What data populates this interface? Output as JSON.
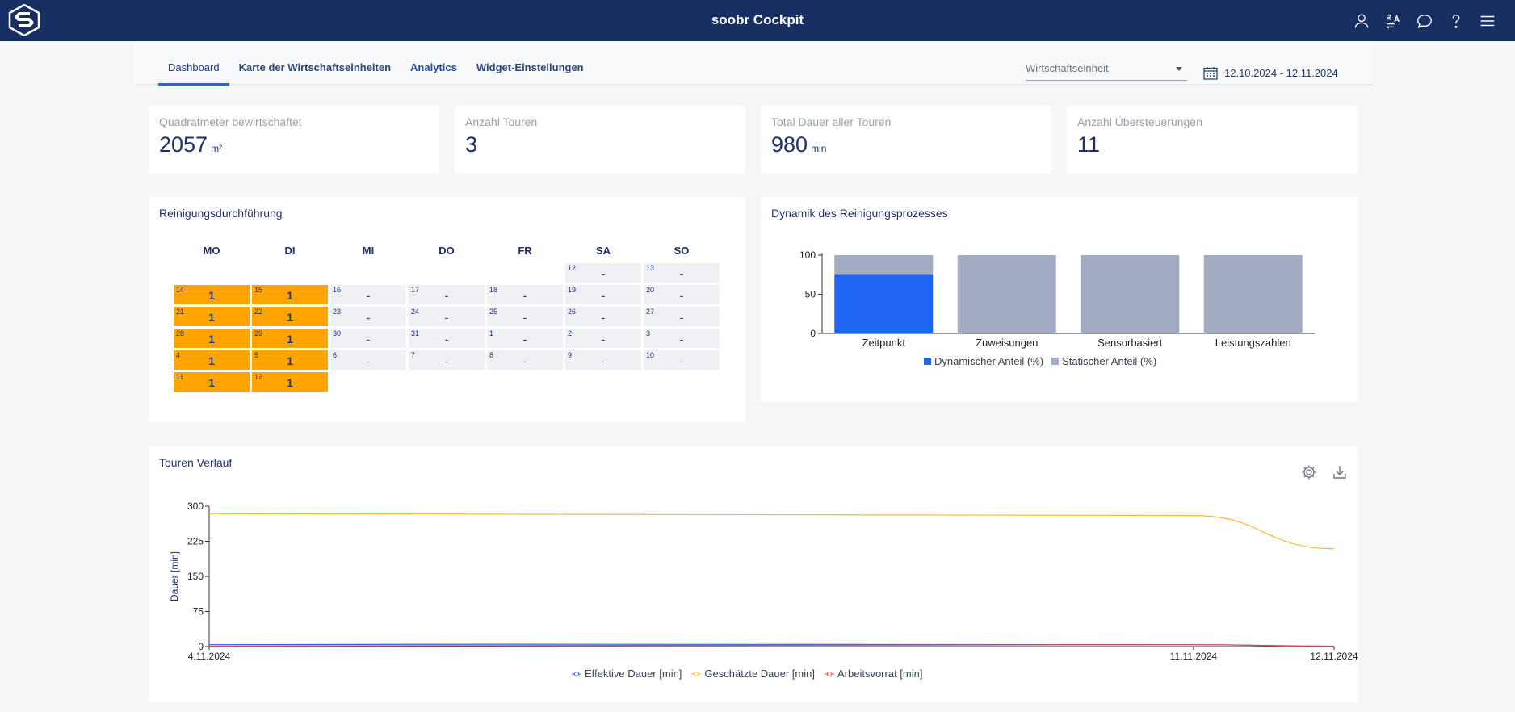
{
  "app": {
    "title": "soobr Cockpit"
  },
  "nav": {
    "tabs": [
      {
        "label": "Dashboard"
      },
      {
        "label": "Karte der Wirtschaftseinheiten"
      },
      {
        "label": "Analytics"
      },
      {
        "label": "Widget-Einstellungen"
      }
    ],
    "select_placeholder": "Wirtschaftseinheit",
    "date_range": "12.10.2024 - 12.11.2024"
  },
  "kpis": [
    {
      "label": "Quadratmeter bewirtschaftet",
      "value": "2057",
      "unit": "m²"
    },
    {
      "label": "Anzahl Touren",
      "value": "3",
      "unit": ""
    },
    {
      "label": "Total Dauer aller Touren",
      "value": "980",
      "unit": "min"
    },
    {
      "label": "Anzahl Übersteuerungen",
      "value": "11",
      "unit": ""
    }
  ],
  "calendar": {
    "title": "Reinigungsdurchführung",
    "weekdays": [
      "MO",
      "DI",
      "MI",
      "DO",
      "FR",
      "SA",
      "SO"
    ],
    "weeks": [
      [
        null,
        null,
        null,
        null,
        null,
        {
          "day": "12",
          "value": "-"
        },
        {
          "day": "13",
          "value": "-"
        }
      ],
      [
        {
          "day": "14",
          "value": "1",
          "hi": true
        },
        {
          "day": "15",
          "value": "1",
          "hi": true
        },
        {
          "day": "16",
          "value": "-"
        },
        {
          "day": "17",
          "value": "-"
        },
        {
          "day": "18",
          "value": "-"
        },
        {
          "day": "19",
          "value": "-"
        },
        {
          "day": "20",
          "value": "-"
        }
      ],
      [
        {
          "day": "21",
          "value": "1",
          "hi": true
        },
        {
          "day": "22",
          "value": "1",
          "hi": true
        },
        {
          "day": "23",
          "value": "-"
        },
        {
          "day": "24",
          "value": "-"
        },
        {
          "day": "25",
          "value": "-"
        },
        {
          "day": "26",
          "value": "-"
        },
        {
          "day": "27",
          "value": "-"
        }
      ],
      [
        {
          "day": "28",
          "value": "1",
          "hi": true
        },
        {
          "day": "29",
          "value": "1",
          "hi": true
        },
        {
          "day": "30",
          "value": "-"
        },
        {
          "day": "31",
          "value": "-"
        },
        {
          "day": "1",
          "value": "-"
        },
        {
          "day": "2",
          "value": "-"
        },
        {
          "day": "3",
          "value": "-"
        }
      ],
      [
        {
          "day": "4",
          "value": "1",
          "hi": true
        },
        {
          "day": "5",
          "value": "1",
          "hi": true
        },
        {
          "day": "6",
          "value": "-"
        },
        {
          "day": "7",
          "value": "-"
        },
        {
          "day": "8",
          "value": "-"
        },
        {
          "day": "9",
          "value": "-"
        },
        {
          "day": "10",
          "value": "-"
        }
      ],
      [
        {
          "day": "11",
          "value": "1",
          "hi": true
        },
        {
          "day": "12",
          "value": "1",
          "hi": true
        },
        null,
        null,
        null,
        null,
        null
      ]
    ]
  },
  "colors": {
    "header": "#172f63",
    "highlight": "#ffa400",
    "accent": "#2563eb"
  },
  "chart_data": [
    {
      "type": "bar",
      "title": "Dynamik des Reinigungsprozesses",
      "categories": [
        "Zeitpunkt",
        "Zuweisungen",
        "Sensorbasiert",
        "Leistungszahlen"
      ],
      "series": [
        {
          "name": "Dynamischer Anteil (%)",
          "values": [
            75,
            0,
            0,
            0
          ],
          "color": "#1f64f5"
        },
        {
          "name": "Statischer Anteil (%)",
          "values": [
            25,
            100,
            100,
            100
          ],
          "color": "#a3abc2"
        }
      ],
      "stacked": true,
      "yticks": [
        0,
        50,
        100
      ],
      "ylim": [
        0,
        100
      ]
    },
    {
      "type": "line",
      "title": "Touren Verlauf",
      "ylabel": "Dauer [min]",
      "xticks": [
        "4.11.2024",
        "11.11.2024",
        "12.11.2024"
      ],
      "yticks": [
        0,
        75,
        150,
        225,
        300
      ],
      "ylim": [
        0,
        300
      ],
      "x": [
        "4.11.2024",
        "6.11.2024",
        "11.11.2024",
        "12.11.2024"
      ],
      "series": [
        {
          "name": "Effektive Dauer [min]",
          "values": [
            4,
            5,
            4,
            1
          ],
          "color": "#2563eb"
        },
        {
          "name": "Geschätzte Dauer [min]",
          "values": [
            284,
            283,
            280,
            209
          ],
          "color": "#f5b82e"
        },
        {
          "name": "Arbeitsvorrat [min]",
          "values": [
            1,
            2,
            4,
            0
          ],
          "color": "#e5484d"
        }
      ],
      "grid": false,
      "legend": "bottom"
    }
  ]
}
